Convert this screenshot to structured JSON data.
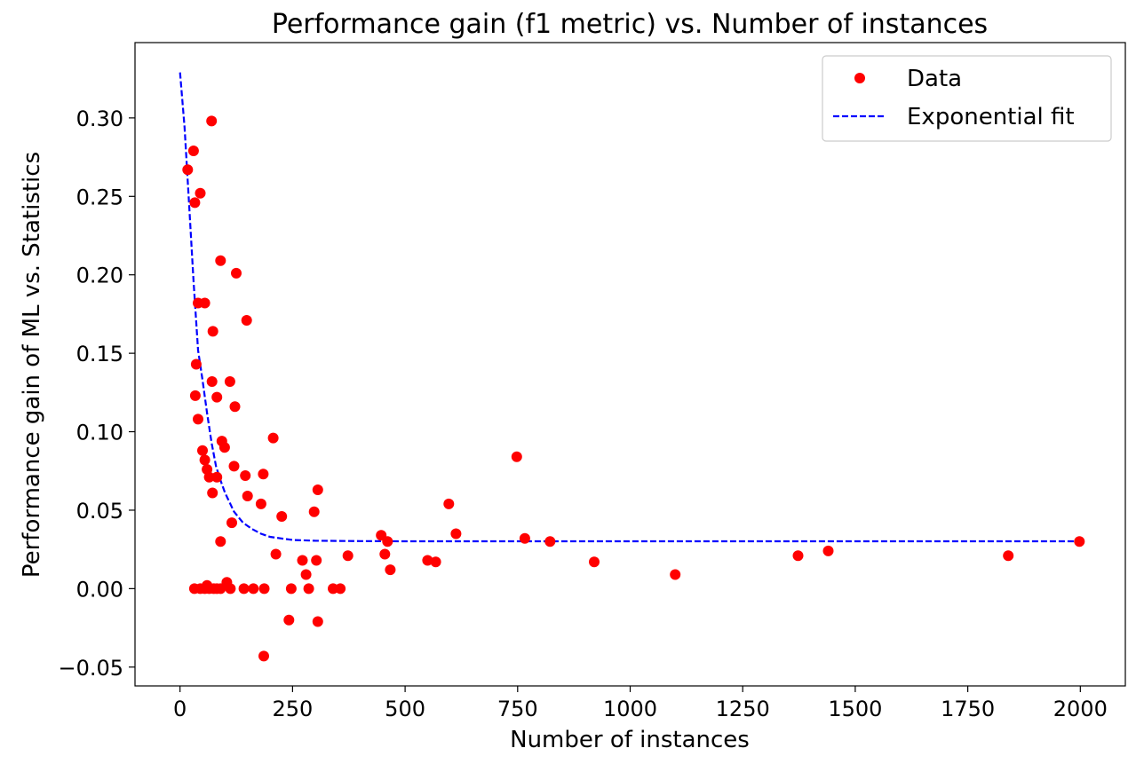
{
  "chart_data": {
    "type": "scatter",
    "title": "Performance gain (f1 metric) vs. Number of instances",
    "xlabel": "Number of instances",
    "ylabel": "Performance gain of ML vs. Statistics",
    "xlim": [
      -100,
      2100
    ],
    "ylim": [
      -0.062,
      0.348
    ],
    "x_ticks": [
      0,
      250,
      500,
      750,
      1000,
      1250,
      1500,
      1750,
      2000
    ],
    "x_tick_labels": [
      "0",
      "250",
      "500",
      "750",
      "1000",
      "1250",
      "1500",
      "1750",
      "2000"
    ],
    "y_ticks": [
      -0.05,
      0.0,
      0.05,
      0.1,
      0.15,
      0.2,
      0.25,
      0.3
    ],
    "y_tick_labels": [
      "−0.05",
      "0.00",
      "0.05",
      "0.10",
      "0.15",
      "0.20",
      "0.25",
      "0.30"
    ],
    "grid": false,
    "legend_position": "top-right",
    "series": [
      {
        "name": "Data",
        "style": "markers",
        "color": "#ff0000",
        "points": [
          [
            17,
            0.267
          ],
          [
            30,
            0.279
          ],
          [
            33,
            0.246
          ],
          [
            45,
            0.252
          ],
          [
            70,
            0.298
          ],
          [
            40,
            0.182
          ],
          [
            55,
            0.182
          ],
          [
            90,
            0.209
          ],
          [
            125,
            0.201
          ],
          [
            148,
            0.171
          ],
          [
            73,
            0.164
          ],
          [
            36,
            0.143
          ],
          [
            71,
            0.132
          ],
          [
            111,
            0.132
          ],
          [
            34,
            0.123
          ],
          [
            82,
            0.122
          ],
          [
            122,
            0.116
          ],
          [
            40,
            0.108
          ],
          [
            93,
            0.094
          ],
          [
            207,
            0.096
          ],
          [
            99,
            0.09
          ],
          [
            50,
            0.088
          ],
          [
            55,
            0.082
          ],
          [
            60,
            0.076
          ],
          [
            120,
            0.078
          ],
          [
            65,
            0.071
          ],
          [
            82,
            0.071
          ],
          [
            145,
            0.072
          ],
          [
            185,
            0.073
          ],
          [
            72,
            0.061
          ],
          [
            150,
            0.059
          ],
          [
            180,
            0.054
          ],
          [
            306,
            0.063
          ],
          [
            298,
            0.049
          ],
          [
            226,
            0.046
          ],
          [
            115,
            0.042
          ],
          [
            90,
            0.03
          ],
          [
            213,
            0.022
          ],
          [
            272,
            0.018
          ],
          [
            303,
            0.018
          ],
          [
            280,
            0.009
          ],
          [
            373,
            0.021
          ],
          [
            447,
            0.034
          ],
          [
            461,
            0.03
          ],
          [
            455,
            0.022
          ],
          [
            467,
            0.012
          ],
          [
            550,
            0.018
          ],
          [
            568,
            0.017
          ],
          [
            597,
            0.054
          ],
          [
            613,
            0.035
          ],
          [
            748,
            0.084
          ],
          [
            766,
            0.032
          ],
          [
            822,
            0.03
          ],
          [
            920,
            0.017
          ],
          [
            1100,
            0.009
          ],
          [
            1373,
            0.021
          ],
          [
            1440,
            0.024
          ],
          [
            1840,
            0.021
          ],
          [
            1998,
            0.03
          ],
          [
            32,
            0.0
          ],
          [
            45,
            0.0
          ],
          [
            55,
            0.0
          ],
          [
            60,
            0.002
          ],
          [
            65,
            0.0
          ],
          [
            75,
            0.0
          ],
          [
            82,
            0.0
          ],
          [
            90,
            0.0
          ],
          [
            104,
            0.004
          ],
          [
            112,
            0.0
          ],
          [
            142,
            0.0
          ],
          [
            163,
            0.0
          ],
          [
            187,
            0.0
          ],
          [
            247,
            0.0
          ],
          [
            286,
            0.0
          ],
          [
            340,
            0.0
          ],
          [
            356,
            0.0
          ],
          [
            242,
            -0.02
          ],
          [
            306,
            -0.021
          ],
          [
            186,
            -0.043
          ]
        ]
      },
      {
        "name": "Exponential fit",
        "style": "dashed-line",
        "color": "#0000ff",
        "points": [
          [
            0,
            0.329
          ],
          [
            10,
            0.294
          ],
          [
            20,
            0.246
          ],
          [
            30,
            0.196
          ],
          [
            40,
            0.152
          ],
          [
            50,
            0.133
          ],
          [
            60,
            0.112
          ],
          [
            70,
            0.093
          ],
          [
            80,
            0.078
          ],
          [
            90,
            0.069
          ],
          [
            100,
            0.061
          ],
          [
            120,
            0.049
          ],
          [
            140,
            0.042
          ],
          [
            160,
            0.038
          ],
          [
            180,
            0.035
          ],
          [
            200,
            0.033
          ],
          [
            225,
            0.032
          ],
          [
            250,
            0.031
          ],
          [
            300,
            0.0305
          ],
          [
            400,
            0.0303
          ],
          [
            500,
            0.0302
          ],
          [
            750,
            0.0302
          ],
          [
            1000,
            0.0302
          ],
          [
            1500,
            0.0302
          ],
          [
            2000,
            0.0302
          ]
        ]
      }
    ]
  }
}
